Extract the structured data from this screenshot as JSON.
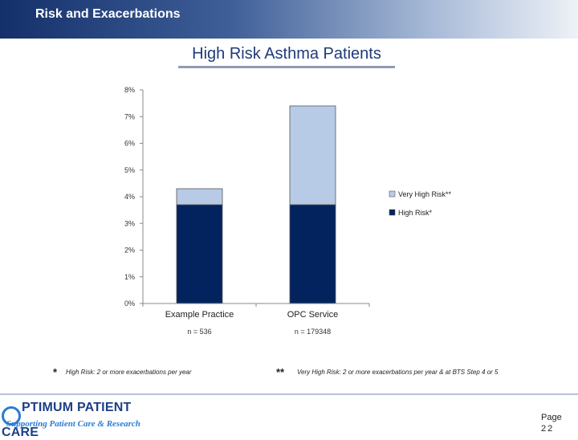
{
  "header": {
    "title": "Risk and Exacerbations"
  },
  "slide_title": "High Risk Asthma Patients",
  "colors": {
    "header_dark": "#14306b",
    "high_risk": "#03235f",
    "very_high_risk": "#b7cbe6",
    "title_text": "#1f3a7a"
  },
  "chart_data": {
    "type": "bar",
    "stacked": true,
    "categories": [
      "Example Practice",
      "OPC Service"
    ],
    "category_notes": [
      "n = 536",
      "n = 179348"
    ],
    "series": [
      {
        "name": "High Risk*",
        "values": [
          3.7,
          3.7
        ]
      },
      {
        "name": "Very High Risk**",
        "values": [
          0.6,
          3.7
        ]
      }
    ],
    "yticks": [
      "0%",
      "1%",
      "2%",
      "3%",
      "4%",
      "5%",
      "6%",
      "7%",
      "8%"
    ],
    "ylim": [
      0,
      8
    ],
    "legend_position": "right",
    "grid": false
  },
  "footnotes": [
    {
      "mark": "*",
      "text": "High Risk: 2 or more exacerbations per year"
    },
    {
      "mark": "**",
      "text": "Very High Risk: 2 or more exacerbations per year & at BTS Step 4 or 5"
    }
  ],
  "logo": {
    "name": "OPTIMUM PATIENT CARE",
    "name_rest": "PTIMUM PATIENT CARE",
    "tagline": "Supporting Patient Care & Research"
  },
  "page": {
    "label": "Page",
    "number": "22"
  }
}
